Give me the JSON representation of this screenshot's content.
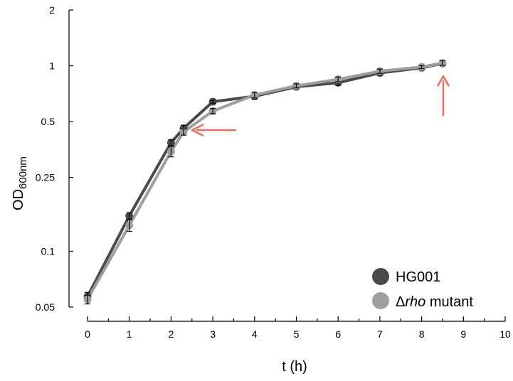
{
  "chart_data": {
    "type": "line",
    "xlabel": "t (h)",
    "ylabel": {
      "main": "OD",
      "subscript": "600nm"
    },
    "xlim": [
      0,
      10
    ],
    "ylim": [
      0.05,
      2
    ],
    "yscale": "log",
    "xticks": [
      "0",
      "1",
      "2",
      "3",
      "4",
      "5",
      "6",
      "7",
      "8",
      "9",
      "10"
    ],
    "yticks": [
      {
        "value": 2,
        "label": "2"
      },
      {
        "value": 1,
        "label": "1"
      },
      {
        "value": 0.5,
        "label": "0.5"
      },
      {
        "value": 0.25,
        "label": "0.25"
      },
      {
        "value": 0.1,
        "label": "0.1"
      },
      {
        "value": 0.05,
        "label": "0.05"
      }
    ],
    "grid": false,
    "legend_position": "bottom-right",
    "series": [
      {
        "name": "HG001",
        "color": "#4a4a4a",
        "x": [
          0,
          1,
          2,
          2.3,
          3,
          4,
          5,
          6,
          7,
          8,
          8.5
        ],
        "y": [
          0.057,
          0.155,
          0.385,
          0.46,
          0.64,
          0.685,
          0.77,
          0.81,
          0.915,
          0.975,
          1.03
        ],
        "err": [
          0.003,
          0.006,
          0.014,
          0.017,
          0.012,
          0.025,
          0.02,
          0.025,
          0.025,
          0.02,
          0.03
        ]
      },
      {
        "name": "Δrho mutant",
        "name_parts": {
          "prefix": "Δ",
          "italic": "rho",
          "suffix": " mutant"
        },
        "color": "#9e9e9e",
        "x": [
          0,
          1,
          2,
          2.3,
          3,
          4,
          5,
          6,
          7,
          8,
          8.5
        ],
        "y": [
          0.055,
          0.138,
          0.345,
          0.44,
          0.57,
          0.695,
          0.78,
          0.845,
          0.935,
          0.985,
          1.035
        ],
        "err": [
          0.003,
          0.01,
          0.022,
          0.017,
          0.018,
          0.025,
          0.02,
          0.025,
          0.025,
          0.02,
          0.03
        ]
      }
    ],
    "annotations": [
      {
        "type": "arrow",
        "color": "#ef6c5a",
        "direction": "left",
        "points_to": {
          "x": 2.3,
          "y": 0.45
        }
      },
      {
        "type": "arrow",
        "color": "#ef6c5a",
        "direction": "up",
        "points_to": {
          "x": 8.5,
          "y": 1.03
        }
      }
    ]
  }
}
